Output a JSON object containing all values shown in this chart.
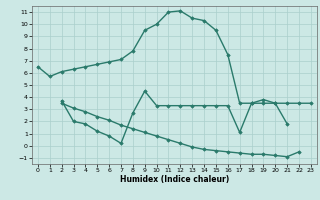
{
  "line1_x": [
    0,
    1,
    2,
    3,
    4,
    5,
    6,
    7,
    8,
    9,
    10,
    11,
    12,
    13,
    14,
    15,
    16,
    17,
    18,
    19,
    20,
    21,
    22,
    23
  ],
  "line1_y": [
    6.5,
    5.7,
    6.1,
    6.3,
    6.5,
    6.7,
    6.9,
    7.1,
    7.8,
    9.5,
    10.0,
    11.0,
    11.1,
    10.5,
    10.3,
    9.5,
    7.5,
    3.5,
    3.5,
    3.5,
    3.5,
    3.5,
    3.5,
    3.5
  ],
  "line2_x": [
    2,
    3,
    4,
    5,
    6,
    7,
    8,
    9,
    10,
    11,
    12,
    13,
    14,
    15,
    16,
    17,
    18,
    19,
    20,
    21
  ],
  "line2_y": [
    3.7,
    2.0,
    1.8,
    1.2,
    0.8,
    0.2,
    2.7,
    4.5,
    3.3,
    3.3,
    3.3,
    3.3,
    3.3,
    3.3,
    3.3,
    1.1,
    3.5,
    3.8,
    3.5,
    1.8
  ],
  "line3_x": [
    2,
    3,
    4,
    5,
    6,
    7,
    8,
    9,
    10,
    11,
    12,
    13,
    14,
    15,
    16,
    17,
    18,
    19,
    20,
    21,
    22
  ],
  "line3_y": [
    3.5,
    3.1,
    2.8,
    2.4,
    2.1,
    1.7,
    1.4,
    1.1,
    0.8,
    0.5,
    0.2,
    -0.1,
    -0.3,
    -0.4,
    -0.5,
    -0.6,
    -0.7,
    -0.7,
    -0.8,
    -0.9,
    -0.5
  ],
  "color": "#2a7a6b",
  "bg_color": "#cce8e5",
  "grid_color": "#aacfcc",
  "xlabel": "Humidex (Indice chaleur)",
  "ylim": [
    -1.5,
    11.5
  ],
  "xlim": [
    -0.5,
    23.5
  ],
  "yticks": [
    -1,
    0,
    1,
    2,
    3,
    4,
    5,
    6,
    7,
    8,
    9,
    10,
    11
  ],
  "xticks": [
    0,
    1,
    2,
    3,
    4,
    5,
    6,
    7,
    8,
    9,
    10,
    11,
    12,
    13,
    14,
    15,
    16,
    17,
    18,
    19,
    20,
    21,
    22,
    23
  ],
  "marker": "D",
  "markersize": 1.8,
  "linewidth": 1.0
}
